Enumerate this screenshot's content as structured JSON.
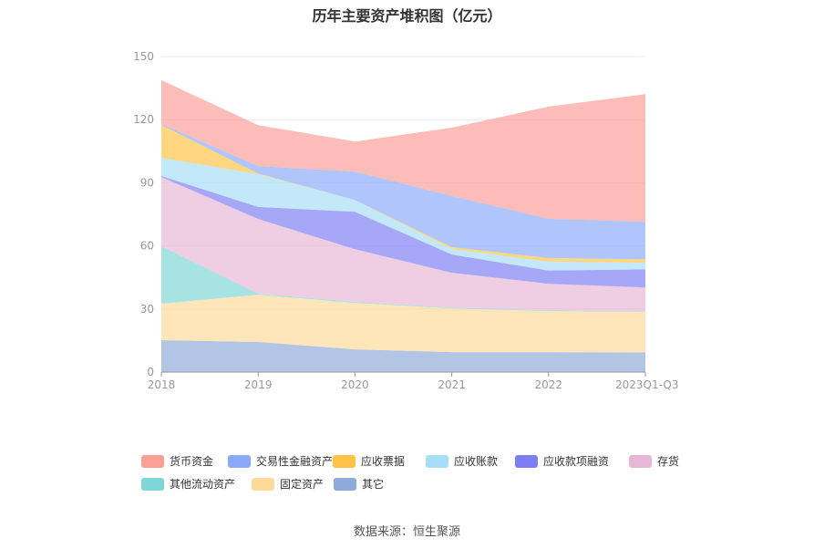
{
  "chart_data": {
    "type": "area",
    "stacked": true,
    "title": "历年主要资产堆积图（亿元）",
    "xlabel": "",
    "ylabel": "",
    "categories": [
      "2018",
      "2019",
      "2020",
      "2021",
      "2022",
      "2023Q1-Q3"
    ],
    "ylim": [
      0,
      150
    ],
    "yticks": [
      0,
      30,
      60,
      90,
      120,
      150
    ],
    "grid": true,
    "legend_position": "bottom",
    "series": [
      {
        "name": "其它",
        "color": "#8eaad9",
        "values": [
          15.2,
          14.3,
          10.8,
          9.5,
          9.5,
          9.3
        ]
      },
      {
        "name": "固定资产",
        "color": "#fdd99a",
        "values": [
          17.3,
          22.5,
          22.1,
          20.8,
          19.5,
          19.3
        ]
      },
      {
        "name": "其他流动资产",
        "color": "#7fd6d6",
        "values": [
          27.3,
          0.5,
          0.5,
          0.3,
          0.3,
          0.3
        ]
      },
      {
        "name": "存货",
        "color": "#e8b6d6",
        "values": [
          32.9,
          35.5,
          25.0,
          16.6,
          12.7,
          11.3
        ]
      },
      {
        "name": "应收款项融资",
        "color": "#7e7ef3",
        "values": [
          0.5,
          5.7,
          17.8,
          8.7,
          6.3,
          8.6
        ]
      },
      {
        "name": "应收账款",
        "color": "#a6ddf7",
        "values": [
          8.7,
          15.6,
          5.6,
          2.6,
          4.2,
          3.1
        ]
      },
      {
        "name": "应收票据",
        "color": "#fec344",
        "values": [
          15.6,
          0.3,
          0.0,
          0.9,
          1.7,
          1.7
        ]
      },
      {
        "name": "交易性金融资产",
        "color": "#8aa9f9",
        "values": [
          0.5,
          3.5,
          13.5,
          24.3,
          18.7,
          17.8
        ]
      },
      {
        "name": "货币资金",
        "color": "#fa9e96",
        "values": [
          20.8,
          19.5,
          14.3,
          32.5,
          53.3,
          60.7
        ]
      }
    ],
    "legend_order": [
      "货币资金",
      "交易性金融资产",
      "应收票据",
      "应收账款",
      "应收款项融资",
      "存货",
      "其他流动资产",
      "固定资产",
      "其它"
    ]
  },
  "source": "数据来源：恒生聚源"
}
